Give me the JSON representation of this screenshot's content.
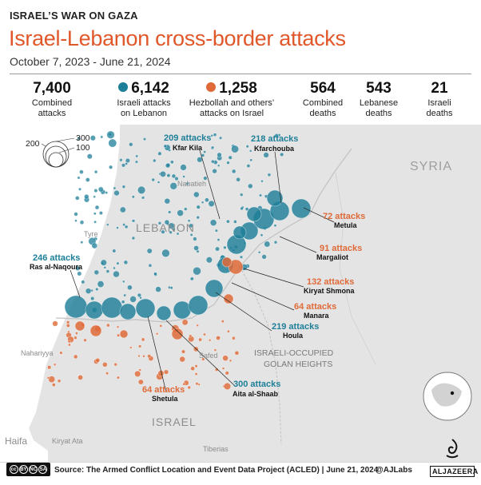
{
  "header": {
    "kicker": "ISRAEL’S WAR ON GAZA",
    "title": "Israel-Lebanon cross-border attacks",
    "date_range": "October 7, 2023 - June 21, 2024"
  },
  "stats": [
    {
      "value": "7,400",
      "line1": "Combined",
      "line2": "attacks",
      "dot": ""
    },
    {
      "value": "6,142",
      "line1": "Israeli attacks",
      "line2": "on Lebanon",
      "dot": "#1e7f99"
    },
    {
      "value": "1,258",
      "line1": "Hezbollah and others’",
      "line2": "attacks on Israel",
      "dot": "#df6a38"
    },
    {
      "value": "564",
      "line1": "Combined",
      "line2": "deaths",
      "dot": ""
    },
    {
      "value": "543",
      "line1": "Lebanese",
      "line2": "deaths",
      "dot": ""
    },
    {
      "value": "21",
      "line1": "Israeli",
      "line2": "deaths",
      "dot": ""
    }
  ],
  "colors": {
    "israeli_attacks": "#1e7f99",
    "lebanese_attacks": "#df6a38",
    "land": "#e4e4e4",
    "sea": "#ffffff"
  },
  "size_legend": {
    "labels": [
      "300",
      "200",
      "100"
    ],
    "values": [
      300,
      200,
      100
    ]
  },
  "places": {
    "syria": "SYRIA",
    "lebanon": "LEBANON",
    "golan_1": "ISRAELI-OCCUPIED",
    "golan_2": "GOLAN HEIGHTS",
    "israel": "ISRAEL",
    "haifa": "Haifa",
    "tyre": "Tyre",
    "nabatieh": "Nabatieh",
    "nahariyya": "Nahariyya",
    "safed": "Safed",
    "kiryat_ata": "Kiryat Ata",
    "tiberias": "Tiberias"
  },
  "callouts": [
    {
      "count": "209 attacks",
      "place": "Kfar Kila",
      "side": "israeli"
    },
    {
      "count": "218 attacks",
      "place": "Kfarchouba",
      "side": "israeli"
    },
    {
      "count": "246 attacks",
      "place": "Ras al-Naqoura",
      "side": "israeli"
    },
    {
      "count": "72 attacks",
      "place": "Metula",
      "side": "lebanese"
    },
    {
      "count": "91 attacks",
      "place": "Margaliot",
      "side": "lebanese"
    },
    {
      "count": "132 attacks",
      "place": "Kiryat Shmona",
      "side": "lebanese"
    },
    {
      "count": "64 attacks",
      "place": "Manara",
      "side": "lebanese"
    },
    {
      "count": "219 attacks",
      "place": "Houla",
      "side": "israeli"
    },
    {
      "count": "64 attacks",
      "place": "Shetula",
      "side": "lebanese"
    },
    {
      "count": "300 attacks",
      "place": "Aita al-Shaab",
      "side": "israeli"
    }
  ],
  "footer": {
    "source": "Source: The Armed Conflict Location and Event Data Project (ACLED) | June 21, 2024",
    "handle": "@AJLabs",
    "brand": "ALJAZEERA",
    "license_badge": [
      "cc",
      "BY",
      "NC",
      "SA"
    ]
  }
}
